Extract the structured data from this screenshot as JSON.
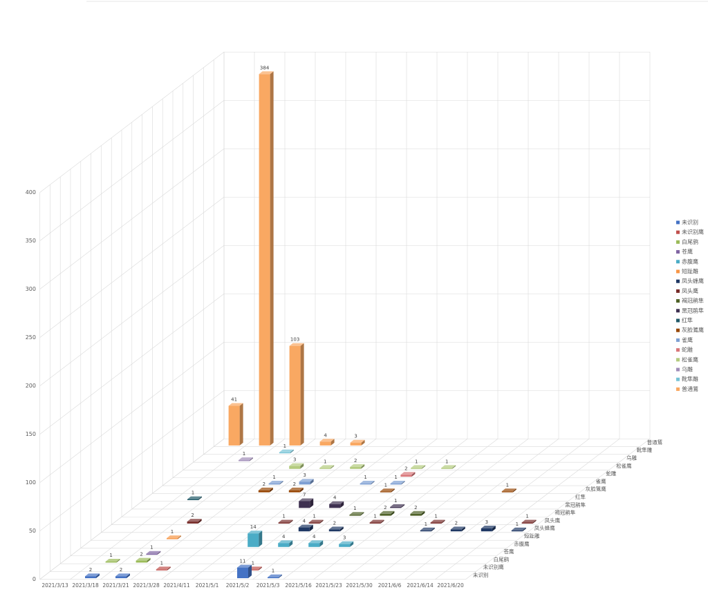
{
  "chart_data": {
    "type": "bar3d",
    "categories": [
      "2021/3/13",
      "2021/3/18",
      "2021/3/21",
      "2021/3/28",
      "2021/4/11",
      "2021/5/1",
      "2021/5/2",
      "2021/5/3",
      "2021/5/16",
      "2021/5/23",
      "2021/5/30",
      "2021/6/6",
      "2021/6/14",
      "2021/6/20"
    ],
    "series": [
      {
        "name": "未识别",
        "color": "#4472c4",
        "values": [
          null,
          2,
          2,
          null,
          null,
          null,
          11,
          1,
          null,
          null,
          null,
          null,
          null,
          null
        ]
      },
      {
        "name": "未识别鹰",
        "color": "#c0504d",
        "values": [
          null,
          null,
          null,
          1,
          null,
          null,
          1,
          null,
          null,
          null,
          null,
          null,
          null,
          null
        ]
      },
      {
        "name": "白尾鹞",
        "color": "#9bbb59",
        "values": [
          null,
          1,
          2,
          null,
          null,
          null,
          null,
          null,
          null,
          null,
          null,
          null,
          null,
          null
        ]
      },
      {
        "name": "苍鹰",
        "color": "#8064a2",
        "values": [
          null,
          null,
          1,
          null,
          null,
          null,
          null,
          null,
          null,
          null,
          null,
          null,
          null,
          null
        ]
      },
      {
        "name": "赤腹鹰",
        "color": "#4bacc6",
        "values": [
          null,
          null,
          null,
          null,
          null,
          14,
          4,
          4,
          3,
          null,
          null,
          null,
          null,
          null
        ]
      },
      {
        "name": "短趾雕",
        "color": "#f79646",
        "values": [
          null,
          null,
          1,
          null,
          null,
          null,
          null,
          null,
          null,
          null,
          null,
          null,
          null,
          null
        ]
      },
      {
        "name": "凤头蜂鹰",
        "color": "#1f3864",
        "values": [
          null,
          null,
          null,
          null,
          null,
          null,
          4,
          2,
          null,
          null,
          1,
          2,
          3,
          1
        ]
      },
      {
        "name": "凤头鹰",
        "color": "#772c2a",
        "values": [
          null,
          null,
          2,
          null,
          null,
          1,
          1,
          null,
          1,
          null,
          1,
          null,
          null,
          1
        ]
      },
      {
        "name": "褐冠鹃隼",
        "color": "#4f6228",
        "values": [
          null,
          null,
          null,
          null,
          null,
          null,
          null,
          1,
          2,
          2,
          null,
          null,
          null,
          null
        ]
      },
      {
        "name": "黑冠鹃隼",
        "color": "#3f3151",
        "values": [
          null,
          null,
          null,
          null,
          null,
          7,
          4,
          null,
          1,
          null,
          null,
          null,
          null,
          null
        ]
      },
      {
        "name": "红隼",
        "color": "#215968",
        "values": [
          null,
          1,
          null,
          null,
          null,
          null,
          null,
          null,
          null,
          null,
          null,
          null,
          null,
          null
        ]
      },
      {
        "name": "灰脸鵟鹰",
        "color": "#984807",
        "values": [
          null,
          null,
          null,
          2,
          2,
          null,
          null,
          1,
          null,
          null,
          null,
          1,
          null,
          null
        ]
      },
      {
        "name": "雀鹰",
        "color": "#7d9fd3",
        "values": [
          null,
          null,
          null,
          1,
          3,
          null,
          1,
          1,
          null,
          null,
          null,
          null,
          null,
          null
        ]
      },
      {
        "name": "蛇雕",
        "color": "#d9777a",
        "values": [
          null,
          null,
          null,
          null,
          null,
          null,
          null,
          2,
          null,
          null,
          null,
          null,
          null,
          null
        ]
      },
      {
        "name": "松雀鹰",
        "color": "#b3cb7f",
        "values": [
          null,
          null,
          null,
          3,
          1,
          2,
          null,
          1,
          1,
          null,
          null,
          null,
          null,
          null
        ]
      },
      {
        "name": "乌雕",
        "color": "#a08db8",
        "values": [
          null,
          1,
          null,
          null,
          null,
          null,
          null,
          null,
          null,
          null,
          null,
          null,
          null,
          null
        ]
      },
      {
        "name": "靴隼雕",
        "color": "#76c3d6",
        "values": [
          null,
          null,
          1,
          null,
          null,
          null,
          null,
          null,
          null,
          null,
          null,
          null,
          null,
          null
        ]
      },
      {
        "name": "普通鵟",
        "color": "#f9a862",
        "values": [
          41,
          384,
          103,
          4,
          3,
          null,
          null,
          null,
          null,
          null,
          null,
          null,
          null,
          null
        ]
      }
    ],
    "ylim": [
      0,
      400
    ],
    "yticks": [
      0,
      50,
      100,
      150,
      200,
      250,
      300,
      350,
      400
    ],
    "grid": true,
    "legend": "right"
  }
}
